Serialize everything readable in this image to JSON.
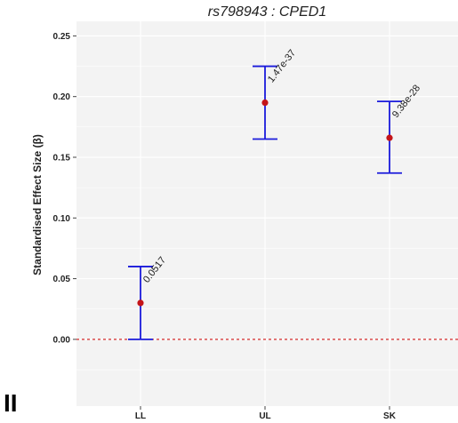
{
  "panel_label": "II",
  "chart_data": {
    "type": "errorbar",
    "title": "rs798943 : CPED1",
    "xlabel": "",
    "ylabel": "Standardised Effect Size (β)",
    "categories": [
      "LL",
      "UL",
      "SK"
    ],
    "values": [
      0.03,
      0.195,
      0.166
    ],
    "lower": [
      0.0,
      0.165,
      0.137
    ],
    "upper": [
      0.06,
      0.225,
      0.196
    ],
    "point_labels": [
      "0.0517",
      "1.47e-37",
      "9.38e-28"
    ],
    "yticks": [
      0.0,
      0.05,
      0.1,
      0.15,
      0.2,
      0.25
    ],
    "ytick_labels": [
      "0.00",
      "0.05",
      "0.10",
      "0.15",
      "0.20",
      "0.25"
    ],
    "ylim": [
      -0.055,
      0.262
    ],
    "reference_line": 0,
    "grid": true,
    "colors": {
      "errorbar": "#1a1adb",
      "point": "#c41418",
      "reference": "#d42a2a",
      "panel": "#f3f3f3",
      "grid": "#ffffff"
    }
  }
}
